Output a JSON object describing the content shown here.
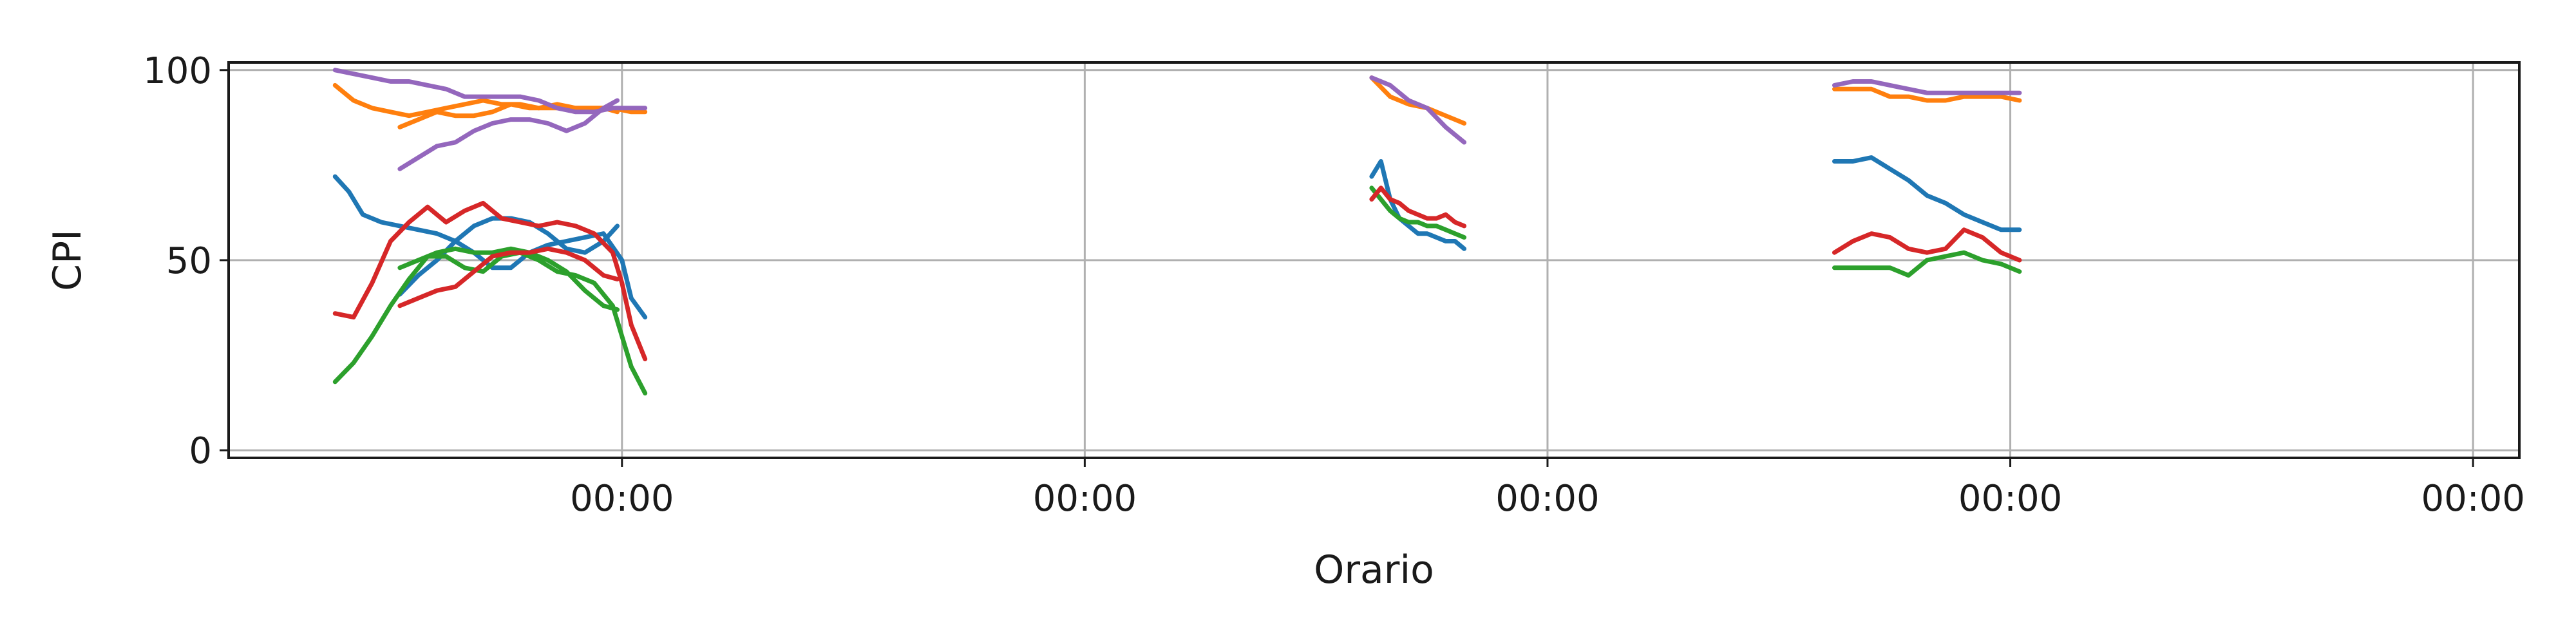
{
  "chart_data": {
    "type": "line",
    "title": "",
    "xlabel": "Orario",
    "ylabel": "CPI",
    "ylim": [
      0,
      100
    ],
    "xlim": [
      -0.85,
      4.1
    ],
    "yticks": [
      0,
      50,
      100
    ],
    "xticks": [
      {
        "x": 0,
        "label": "00:00"
      },
      {
        "x": 1,
        "label": "00:00"
      },
      {
        "x": 2,
        "label": "00:00"
      },
      {
        "x": 3,
        "label": "00:00"
      },
      {
        "x": 4,
        "label": "00:00"
      }
    ],
    "grid": true,
    "legend": "none",
    "series": [
      {
        "color": "#1f77b4",
        "segments": [
          [
            [
              -0.62,
              72
            ],
            [
              -0.59,
              68
            ],
            [
              -0.56,
              62
            ],
            [
              -0.52,
              60
            ],
            [
              -0.48,
              59
            ],
            [
              -0.44,
              58
            ],
            [
              -0.4,
              57
            ],
            [
              -0.36,
              55
            ],
            [
              -0.32,
              52
            ],
            [
              -0.28,
              48
            ],
            [
              -0.24,
              48
            ],
            [
              -0.2,
              52
            ],
            [
              -0.16,
              54
            ],
            [
              -0.12,
              55
            ],
            [
              -0.08,
              56
            ],
            [
              -0.04,
              57
            ],
            [
              0.0,
              50
            ],
            [
              0.02,
              40
            ],
            [
              0.05,
              35
            ]
          ],
          [
            [
              -0.48,
              41
            ],
            [
              -0.44,
              46
            ],
            [
              -0.4,
              50
            ],
            [
              -0.36,
              55
            ],
            [
              -0.32,
              59
            ],
            [
              -0.28,
              61
            ],
            [
              -0.24,
              61
            ],
            [
              -0.2,
              60
            ],
            [
              -0.16,
              57
            ],
            [
              -0.12,
              53
            ],
            [
              -0.08,
              52
            ],
            [
              -0.04,
              55
            ],
            [
              -0.01,
              59
            ]
          ],
          [
            [
              1.62,
              72
            ],
            [
              1.64,
              76
            ],
            [
              1.66,
              66
            ],
            [
              1.68,
              61
            ],
            [
              1.7,
              59
            ],
            [
              1.72,
              57
            ],
            [
              1.74,
              57
            ],
            [
              1.76,
              56
            ],
            [
              1.78,
              55
            ],
            [
              1.8,
              55
            ],
            [
              1.82,
              53
            ]
          ],
          [
            [
              2.62,
              76
            ],
            [
              2.66,
              76
            ],
            [
              2.7,
              77
            ],
            [
              2.74,
              74
            ],
            [
              2.78,
              71
            ],
            [
              2.82,
              67
            ],
            [
              2.86,
              65
            ],
            [
              2.9,
              62
            ],
            [
              2.94,
              60
            ],
            [
              2.98,
              58
            ],
            [
              3.02,
              58
            ]
          ]
        ]
      },
      {
        "color": "#ff7f0e",
        "segments": [
          [
            [
              -0.62,
              96
            ],
            [
              -0.58,
              92
            ],
            [
              -0.54,
              90
            ],
            [
              -0.5,
              89
            ],
            [
              -0.46,
              88
            ],
            [
              -0.42,
              89
            ],
            [
              -0.38,
              90
            ],
            [
              -0.34,
              91
            ],
            [
              -0.3,
              92
            ],
            [
              -0.26,
              91
            ],
            [
              -0.22,
              91
            ],
            [
              -0.18,
              90
            ],
            [
              -0.14,
              91
            ],
            [
              -0.1,
              90
            ],
            [
              -0.06,
              90
            ],
            [
              -0.02,
              90
            ],
            [
              0.02,
              89
            ],
            [
              0.05,
              89
            ]
          ],
          [
            [
              -0.48,
              85
            ],
            [
              -0.44,
              87
            ],
            [
              -0.4,
              89
            ],
            [
              -0.36,
              88
            ],
            [
              -0.32,
              88
            ],
            [
              -0.28,
              89
            ],
            [
              -0.24,
              91
            ],
            [
              -0.2,
              90
            ],
            [
              -0.16,
              90
            ],
            [
              -0.12,
              90
            ],
            [
              -0.08,
              90
            ],
            [
              -0.04,
              90
            ],
            [
              -0.01,
              89
            ]
          ],
          [
            [
              1.62,
              98
            ],
            [
              1.66,
              93
            ],
            [
              1.7,
              91
            ],
            [
              1.74,
              90
            ],
            [
              1.78,
              88
            ],
            [
              1.82,
              86
            ]
          ],
          [
            [
              2.62,
              95
            ],
            [
              2.66,
              95
            ],
            [
              2.7,
              95
            ],
            [
              2.74,
              93
            ],
            [
              2.78,
              93
            ],
            [
              2.82,
              92
            ],
            [
              2.86,
              92
            ],
            [
              2.9,
              93
            ],
            [
              2.94,
              93
            ],
            [
              2.98,
              93
            ],
            [
              3.02,
              92
            ]
          ]
        ]
      },
      {
        "color": "#2ca02c",
        "segments": [
          [
            [
              -0.62,
              18
            ],
            [
              -0.58,
              23
            ],
            [
              -0.54,
              30
            ],
            [
              -0.5,
              38
            ],
            [
              -0.46,
              45
            ],
            [
              -0.42,
              51
            ],
            [
              -0.38,
              51
            ],
            [
              -0.34,
              48
            ],
            [
              -0.3,
              47
            ],
            [
              -0.26,
              51
            ],
            [
              -0.22,
              52
            ],
            [
              -0.18,
              50
            ],
            [
              -0.14,
              47
            ],
            [
              -0.1,
              46
            ],
            [
              -0.06,
              44
            ],
            [
              -0.02,
              38
            ],
            [
              0.0,
              30
            ],
            [
              0.02,
              22
            ],
            [
              0.05,
              15
            ]
          ],
          [
            [
              -0.48,
              48
            ],
            [
              -0.44,
              50
            ],
            [
              -0.4,
              52
            ],
            [
              -0.36,
              53
            ],
            [
              -0.32,
              52
            ],
            [
              -0.28,
              52
            ],
            [
              -0.24,
              53
            ],
            [
              -0.2,
              52
            ],
            [
              -0.16,
              50
            ],
            [
              -0.12,
              47
            ],
            [
              -0.08,
              42
            ],
            [
              -0.04,
              38
            ],
            [
              -0.01,
              37
            ]
          ],
          [
            [
              1.62,
              69
            ],
            [
              1.64,
              66
            ],
            [
              1.66,
              63
            ],
            [
              1.68,
              61
            ],
            [
              1.7,
              60
            ],
            [
              1.72,
              60
            ],
            [
              1.74,
              59
            ],
            [
              1.76,
              59
            ],
            [
              1.78,
              58
            ],
            [
              1.8,
              57
            ],
            [
              1.82,
              56
            ]
          ],
          [
            [
              2.62,
              48
            ],
            [
              2.66,
              48
            ],
            [
              2.7,
              48
            ],
            [
              2.74,
              48
            ],
            [
              2.78,
              46
            ],
            [
              2.82,
              50
            ],
            [
              2.86,
              51
            ],
            [
              2.9,
              52
            ],
            [
              2.94,
              50
            ],
            [
              2.98,
              49
            ],
            [
              3.02,
              47
            ]
          ]
        ]
      },
      {
        "color": "#d62728",
        "segments": [
          [
            [
              -0.62,
              36
            ],
            [
              -0.58,
              35
            ],
            [
              -0.54,
              44
            ],
            [
              -0.5,
              55
            ],
            [
              -0.46,
              60
            ],
            [
              -0.42,
              64
            ],
            [
              -0.38,
              60
            ],
            [
              -0.34,
              63
            ],
            [
              -0.3,
              65
            ],
            [
              -0.26,
              61
            ],
            [
              -0.22,
              60
            ],
            [
              -0.18,
              59
            ],
            [
              -0.14,
              60
            ],
            [
              -0.1,
              59
            ],
            [
              -0.06,
              57
            ],
            [
              -0.02,
              52
            ],
            [
              0.0,
              44
            ],
            [
              0.02,
              33
            ],
            [
              0.05,
              24
            ]
          ],
          [
            [
              -0.48,
              38
            ],
            [
              -0.44,
              40
            ],
            [
              -0.4,
              42
            ],
            [
              -0.36,
              43
            ],
            [
              -0.32,
              47
            ],
            [
              -0.28,
              51
            ],
            [
              -0.24,
              52
            ],
            [
              -0.2,
              52
            ],
            [
              -0.16,
              53
            ],
            [
              -0.12,
              52
            ],
            [
              -0.08,
              50
            ],
            [
              -0.04,
              46
            ],
            [
              -0.01,
              45
            ]
          ],
          [
            [
              1.62,
              66
            ],
            [
              1.64,
              69
            ],
            [
              1.66,
              66
            ],
            [
              1.68,
              65
            ],
            [
              1.7,
              63
            ],
            [
              1.72,
              62
            ],
            [
              1.74,
              61
            ],
            [
              1.76,
              61
            ],
            [
              1.78,
              62
            ],
            [
              1.8,
              60
            ],
            [
              1.82,
              59
            ]
          ],
          [
            [
              2.62,
              52
            ],
            [
              2.66,
              55
            ],
            [
              2.7,
              57
            ],
            [
              2.74,
              56
            ],
            [
              2.78,
              53
            ],
            [
              2.82,
              52
            ],
            [
              2.86,
              53
            ],
            [
              2.9,
              58
            ],
            [
              2.94,
              56
            ],
            [
              2.98,
              52
            ],
            [
              3.02,
              50
            ]
          ]
        ]
      },
      {
        "color": "#9467bd",
        "segments": [
          [
            [
              -0.62,
              100
            ],
            [
              -0.58,
              99
            ],
            [
              -0.54,
              98
            ],
            [
              -0.5,
              97
            ],
            [
              -0.46,
              97
            ],
            [
              -0.42,
              96
            ],
            [
              -0.38,
              95
            ],
            [
              -0.34,
              93
            ],
            [
              -0.3,
              93
            ],
            [
              -0.26,
              93
            ],
            [
              -0.22,
              93
            ],
            [
              -0.18,
              92
            ],
            [
              -0.14,
              90
            ],
            [
              -0.1,
              89
            ],
            [
              -0.06,
              89
            ],
            [
              -0.02,
              90
            ],
            [
              0.02,
              90
            ],
            [
              0.05,
              90
            ]
          ],
          [
            [
              -0.48,
              74
            ],
            [
              -0.44,
              77
            ],
            [
              -0.4,
              80
            ],
            [
              -0.36,
              81
            ],
            [
              -0.32,
              84
            ],
            [
              -0.28,
              86
            ],
            [
              -0.24,
              87
            ],
            [
              -0.2,
              87
            ],
            [
              -0.16,
              86
            ],
            [
              -0.12,
              84
            ],
            [
              -0.08,
              86
            ],
            [
              -0.04,
              90
            ],
            [
              -0.01,
              92
            ]
          ],
          [
            [
              1.62,
              98
            ],
            [
              1.66,
              96
            ],
            [
              1.7,
              92
            ],
            [
              1.74,
              90
            ],
            [
              1.78,
              85
            ],
            [
              1.82,
              81
            ]
          ],
          [
            [
              2.62,
              96
            ],
            [
              2.66,
              97
            ],
            [
              2.7,
              97
            ],
            [
              2.74,
              96
            ],
            [
              2.78,
              95
            ],
            [
              2.82,
              94
            ],
            [
              2.86,
              94
            ],
            [
              2.9,
              94
            ],
            [
              2.94,
              94
            ],
            [
              2.98,
              94
            ],
            [
              3.02,
              94
            ]
          ]
        ]
      }
    ]
  }
}
